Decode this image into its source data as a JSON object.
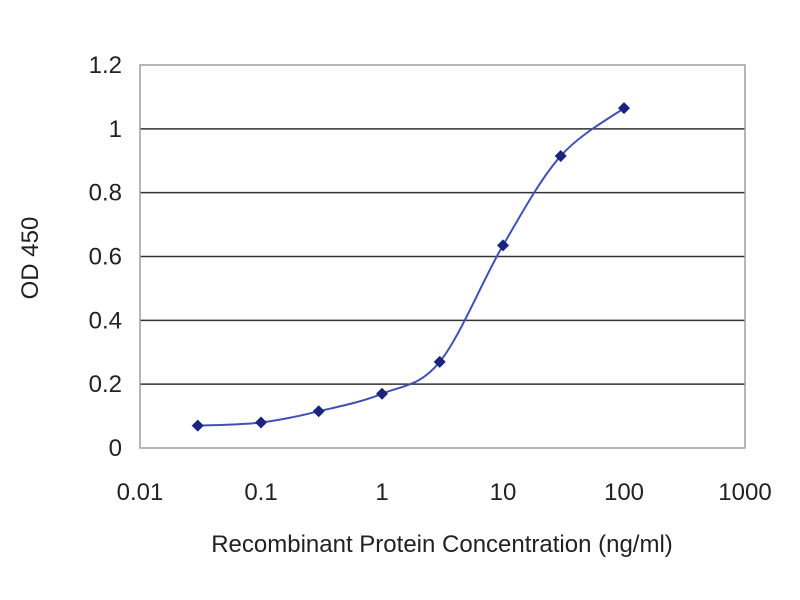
{
  "chart_data": {
    "type": "line",
    "title": "",
    "xlabel": "Recombinant Protein Concentration (ng/ml)",
    "ylabel": "OD 450",
    "x_scale": "log",
    "xlim": [
      0.01,
      1000
    ],
    "ylim": [
      0,
      1.2
    ],
    "x_ticks": [
      {
        "value": 0.01,
        "label": "0.01"
      },
      {
        "value": 0.1,
        "label": "0.1"
      },
      {
        "value": 1,
        "label": "1"
      },
      {
        "value": 10,
        "label": "10"
      },
      {
        "value": 100,
        "label": "100"
      },
      {
        "value": 1000,
        "label": "1000"
      }
    ],
    "y_ticks": [
      {
        "value": 0,
        "label": "0"
      },
      {
        "value": 0.2,
        "label": "0.2"
      },
      {
        "value": 0.4,
        "label": "0.4"
      },
      {
        "value": 0.6,
        "label": "0.6"
      },
      {
        "value": 0.8,
        "label": "0.8"
      },
      {
        "value": 1,
        "label": "1"
      },
      {
        "value": 1.2,
        "label": "1.2"
      }
    ],
    "grid": "horizontal",
    "legend": "none",
    "series": [
      {
        "x": [
          0.03,
          0.1,
          0.3,
          1,
          3,
          10,
          30,
          100
        ],
        "y": [
          0.07,
          0.08,
          0.115,
          0.17,
          0.27,
          0.635,
          0.915,
          1.065
        ]
      }
    ],
    "colors": {
      "series": "#3f51b5",
      "marker": "#1a237e",
      "grid": "#333333",
      "frame": "#9e9e9e",
      "text": "#222222"
    }
  }
}
